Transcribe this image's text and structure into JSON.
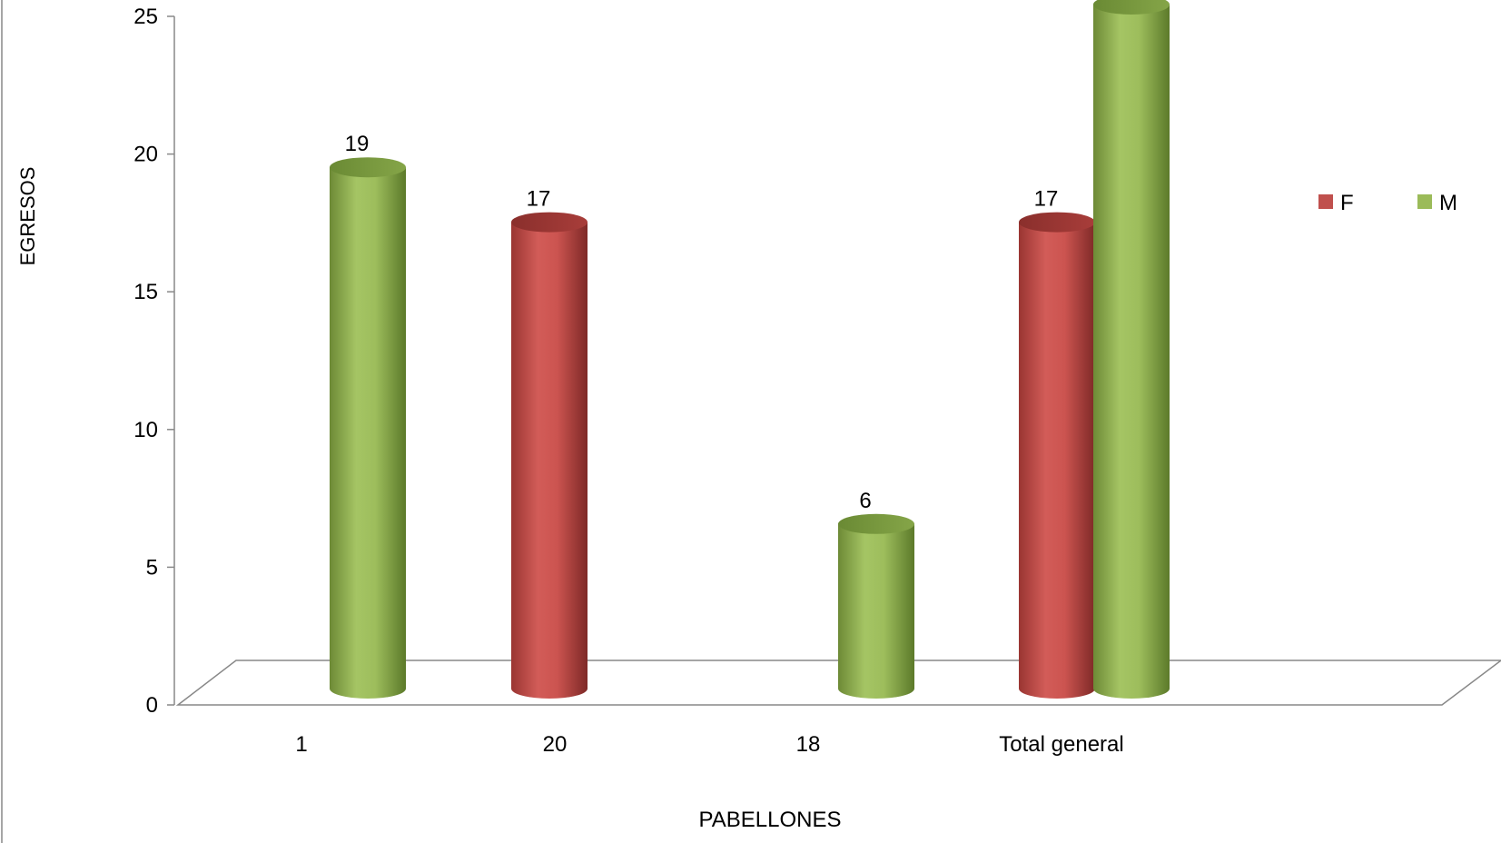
{
  "chart_data": {
    "type": "bar",
    "categories": [
      "1",
      "20",
      "18",
      "Total general"
    ],
    "series": [
      {
        "name": "F",
        "values": [
          null,
          17,
          null,
          17
        ],
        "color": "#c0504d"
      },
      {
        "name": "M",
        "values": [
          19,
          null,
          6,
          25
        ],
        "color": "#9bbb59"
      }
    ],
    "data_labels": [
      {
        "series": 1,
        "category": 0,
        "text": "19"
      },
      {
        "series": 0,
        "category": 1,
        "text": "17"
      },
      {
        "series": 1,
        "category": 2,
        "text": "6"
      },
      {
        "series": 0,
        "category": 3,
        "text": "17"
      }
    ],
    "xlabel": "PABELLONES",
    "ylabel": "EGRESOS",
    "ylim": [
      0,
      25
    ],
    "yticks": [
      "0",
      "5",
      "10",
      "15",
      "20",
      "25"
    ],
    "legend_position": "right",
    "style": "3d-cylinder",
    "grid": false
  }
}
